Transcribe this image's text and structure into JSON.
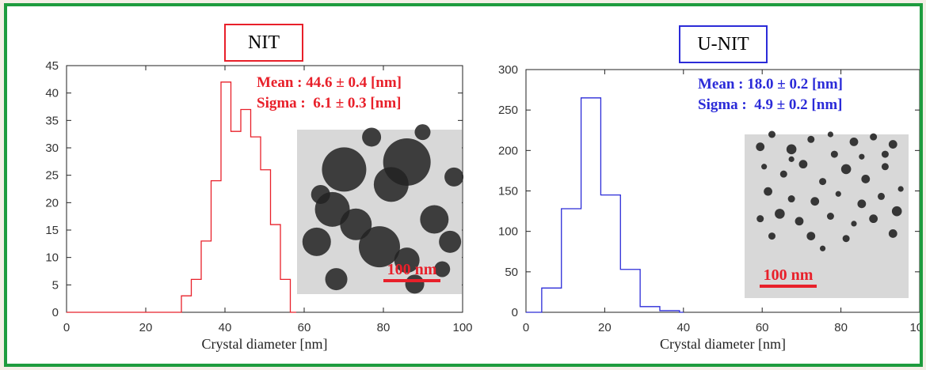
{
  "chart_data": [
    {
      "type": "histogram",
      "title": "NIT",
      "color": "#e8202a",
      "xlabel": "Crystal diameter [nm]",
      "ylabel": "",
      "xlim": [
        0,
        100
      ],
      "ylim": [
        0,
        45
      ],
      "xticks": [
        0,
        20,
        40,
        60,
        80,
        100
      ],
      "yticks": [
        0,
        5,
        10,
        15,
        20,
        25,
        30,
        35,
        40,
        45
      ],
      "bin_width": 2.5,
      "bins": [
        {
          "x0": 0,
          "x1": 29,
          "count": 0
        },
        {
          "x0": 29,
          "x1": 31.5,
          "count": 3
        },
        {
          "x0": 31.5,
          "x1": 34,
          "count": 6
        },
        {
          "x0": 34,
          "x1": 36.5,
          "count": 13
        },
        {
          "x0": 36.5,
          "x1": 39,
          "count": 24
        },
        {
          "x0": 39,
          "x1": 41.5,
          "count": 42
        },
        {
          "x0": 41.5,
          "x1": 44,
          "count": 33
        },
        {
          "x0": 44,
          "x1": 46.5,
          "count": 37
        },
        {
          "x0": 46.5,
          "x1": 49,
          "count": 32
        },
        {
          "x0": 49,
          "x1": 51.5,
          "count": 26
        },
        {
          "x0": 51.5,
          "x1": 54,
          "count": 16
        },
        {
          "x0": 54,
          "x1": 56.5,
          "count": 6
        },
        {
          "x0": 56.5,
          "x1": 58,
          "count": 0
        }
      ],
      "annotations": {
        "mean": "Mean : 44.6 ± 0.4 [nm]",
        "sigma": "Sigma :  6.1 ± 0.3 [nm]"
      },
      "inset": {
        "scale_bar": "100 nm",
        "image": "TEM micrograph of large dark nanocrystals"
      }
    },
    {
      "type": "histogram",
      "title": "U-NIT",
      "color": "#2b2bd8",
      "xlabel": "Crystal diameter [nm]",
      "ylabel": "",
      "xlim": [
        0,
        100
      ],
      "ylim": [
        0,
        300
      ],
      "xticks": [
        0,
        20,
        40,
        60,
        80,
        100
      ],
      "yticks": [
        0,
        50,
        100,
        150,
        200,
        250,
        300
      ],
      "bin_width": 5,
      "bins": [
        {
          "x0": 0,
          "x1": 4,
          "count": 0
        },
        {
          "x0": 4,
          "x1": 9,
          "count": 30
        },
        {
          "x0": 9,
          "x1": 14,
          "count": 128
        },
        {
          "x0": 14,
          "x1": 19,
          "count": 265
        },
        {
          "x0": 19,
          "x1": 24,
          "count": 145
        },
        {
          "x0": 24,
          "x1": 29,
          "count": 53
        },
        {
          "x0": 29,
          "x1": 34,
          "count": 7
        },
        {
          "x0": 34,
          "x1": 39,
          "count": 2
        },
        {
          "x0": 39,
          "x1": 40,
          "count": 0
        }
      ],
      "annotations": {
        "mean": "Mean : 18.0 ± 0.2 [nm]",
        "sigma": "Sigma :  4.9 ± 0.2 [nm]"
      },
      "inset": {
        "scale_bar": "100 nm",
        "image": "TEM micrograph of small dark nanocrystals"
      }
    }
  ]
}
